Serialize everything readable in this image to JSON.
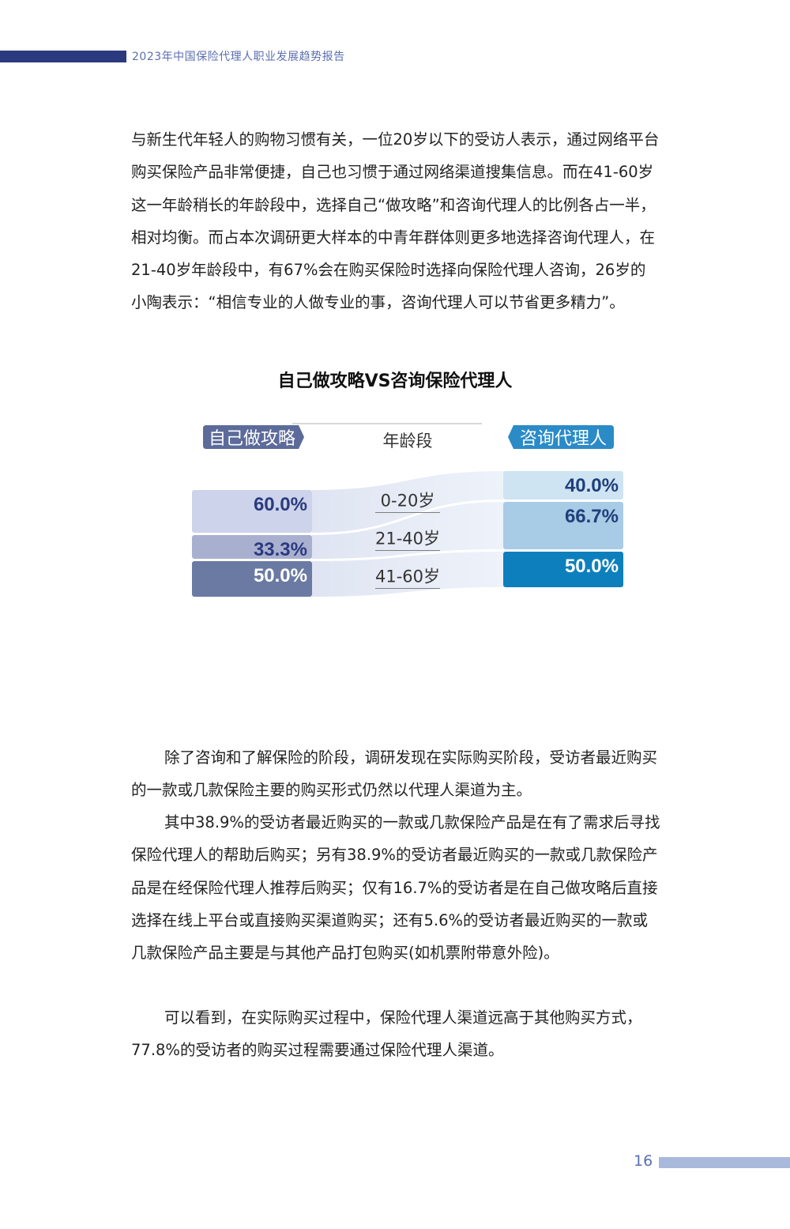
{
  "header": {
    "title": "2023年中国保险代理人职业发展趋势报告"
  },
  "paragraphs": {
    "p1": "与新生代年轻人的购物习惯有关，一位20岁以下的受访人表示，通过网络平台购买保险产品非常便捷，自己也习惯于通过网络渠道搜集信息。而在41-60岁这一年龄稍长的年龄段中，选择自己“做攻略”和咨询代理人的比例各占一半，相对均衡。而占本次调研更大样本的中青年群体则更多地选择咨询代理人，在21-40岁年龄段中，有67%会在购买保险时选择向保险代理人咨询，26岁的小陶表示：“相信专业的人做专业的事，咨询代理人可以节省更多精力”。",
    "p2": "除了咨询和了解保险的阶段，调研发现在实际购买阶段，受访者最近购买的一款或几款保险主要的购买形式仍然以代理人渠道为主。",
    "p3": "其中38.9%的受访者最近购买的一款或几款保险产品是在有了需求后寻找保险代理人的帮助后购买；另有38.9%的受访者最近购买的一款或几款保险产品是在经保险代理人推荐后购买；仅有16.7%的受访者是在自己做攻略后直接选择在线上平台或直接购买渠道购买；还有5.6%的受访者最近购买的一款或几款保险产品主要是与其他产品打包购买(如机票附带意外险)。",
    "p4": "可以看到，在实际购买过程中，保险代理人渠道远高于其他购买方式，77.8%的受访者的购买过程需要通过保险代理人渠道。"
  },
  "chart_data": {
    "type": "bar",
    "title": "自己做攻略VS咨询保险代理人",
    "left_header": "自己做攻略",
    "middle_header": "年龄段",
    "right_header": "咨询代理人",
    "categories": [
      "0-20岁",
      "21-40岁",
      "41-60岁"
    ],
    "series": [
      {
        "name": "自己做攻略",
        "values": [
          60.0,
          33.3,
          50.0
        ],
        "labels": [
          "60.0%",
          "33.3%",
          "50.0%"
        ],
        "colors": [
          "#ccd3ea",
          "#a9b0cf",
          "#6a7aa2"
        ]
      },
      {
        "name": "咨询代理人",
        "values": [
          40.0,
          66.7,
          50.0
        ],
        "labels": [
          "40.0%",
          "66.7%",
          "50.0%"
        ],
        "colors": [
          "#cfe4f3",
          "#a8cbe6",
          "#0e7fbd"
        ]
      }
    ],
    "colors": {
      "left_tag": "#5c6b99",
      "right_tag": "#2b8bc7",
      "left_label": "#2b3a7e",
      "right_label": "#1f3f7a",
      "flow": "#e3e8f4"
    }
  },
  "footer": {
    "page_number": "16"
  }
}
